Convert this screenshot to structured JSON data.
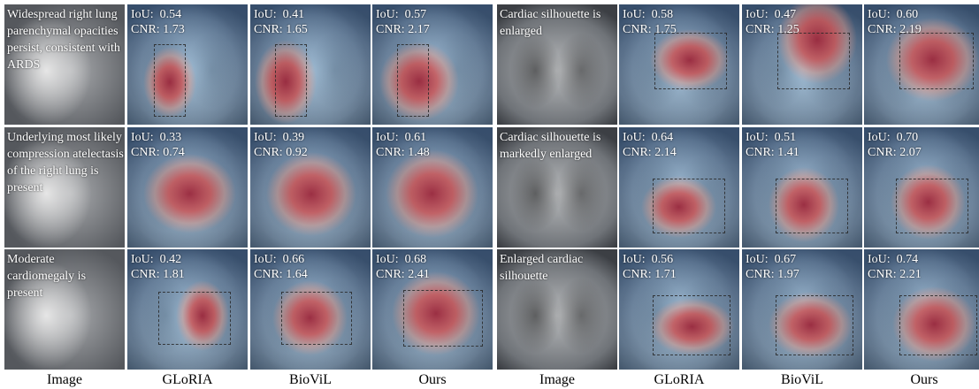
{
  "columns": [
    "Image",
    "GLoRIA",
    "BioViL",
    "Ours",
    "Image",
    "GLoRIA",
    "BioViL",
    "Ours"
  ],
  "groups": [
    {
      "rows": [
        {
          "caption": "Widespread right lung parenchymal opacities persist, consistent with ARDS",
          "gloria": {
            "iou": "0.54",
            "cnr": "1.73"
          },
          "biovil": {
            "iou": "0.41",
            "cnr": "1.65"
          },
          "ours": {
            "iou": "0.57",
            "cnr": "2.17"
          }
        },
        {
          "caption": "Underlying most likely compression atelectasis of the right lung is present",
          "gloria": {
            "iou": "0.33",
            "cnr": "0.74"
          },
          "biovil": {
            "iou": "0.39",
            "cnr": "0.92"
          },
          "ours": {
            "iou": "0.61",
            "cnr": "1.48"
          }
        },
        {
          "caption": "Moderate cardiomegaly is present",
          "gloria": {
            "iou": "0.42",
            "cnr": "1.81"
          },
          "biovil": {
            "iou": "0.66",
            "cnr": "1.64"
          },
          "ours": {
            "iou": "0.68",
            "cnr": "2.41"
          }
        }
      ]
    },
    {
      "rows": [
        {
          "caption": "Cardiac silhouette is enlarged",
          "gloria": {
            "iou": "0.58",
            "cnr": "1.75"
          },
          "biovil": {
            "iou": "0.47",
            "cnr": "1.25"
          },
          "ours": {
            "iou": "0.60",
            "cnr": "2.19"
          }
        },
        {
          "caption": "Cardiac silhouette is markedly enlarged",
          "gloria": {
            "iou": "0.64",
            "cnr": "2.14"
          },
          "biovil": {
            "iou": "0.51",
            "cnr": "1.41"
          },
          "ours": {
            "iou": "0.70",
            "cnr": "2.07"
          }
        },
        {
          "caption": "Enlarged cardiac silhouette",
          "gloria": {
            "iou": "0.56",
            "cnr": "1.71"
          },
          "biovil": {
            "iou": "0.67",
            "cnr": "1.97"
          },
          "ours": {
            "iou": "0.74",
            "cnr": "2.21"
          }
        }
      ]
    }
  ],
  "labels": {
    "iou": "IoU:",
    "cnr": "CNR:"
  }
}
